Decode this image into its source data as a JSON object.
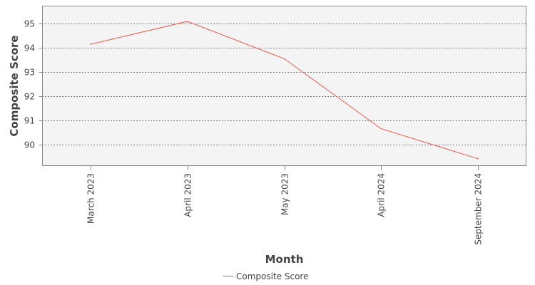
{
  "chart_data": {
    "type": "line",
    "title": "",
    "xlabel": "Month",
    "ylabel": "Composite Score",
    "categories": [
      "March 2023",
      "April 2023",
      "May 2023",
      "April 2024",
      "September 2024"
    ],
    "series": [
      {
        "name": "Composite Score",
        "values": [
          94.15,
          95.1,
          93.55,
          90.65,
          89.4
        ],
        "color": "#f0584b"
      }
    ],
    "y_ticks": [
      90,
      91,
      92,
      93,
      94,
      95
    ],
    "ylim": [
      89.1,
      95.75
    ],
    "grid": true,
    "legend_position": "bottom-center",
    "plot_background": "#f4f4f4"
  }
}
